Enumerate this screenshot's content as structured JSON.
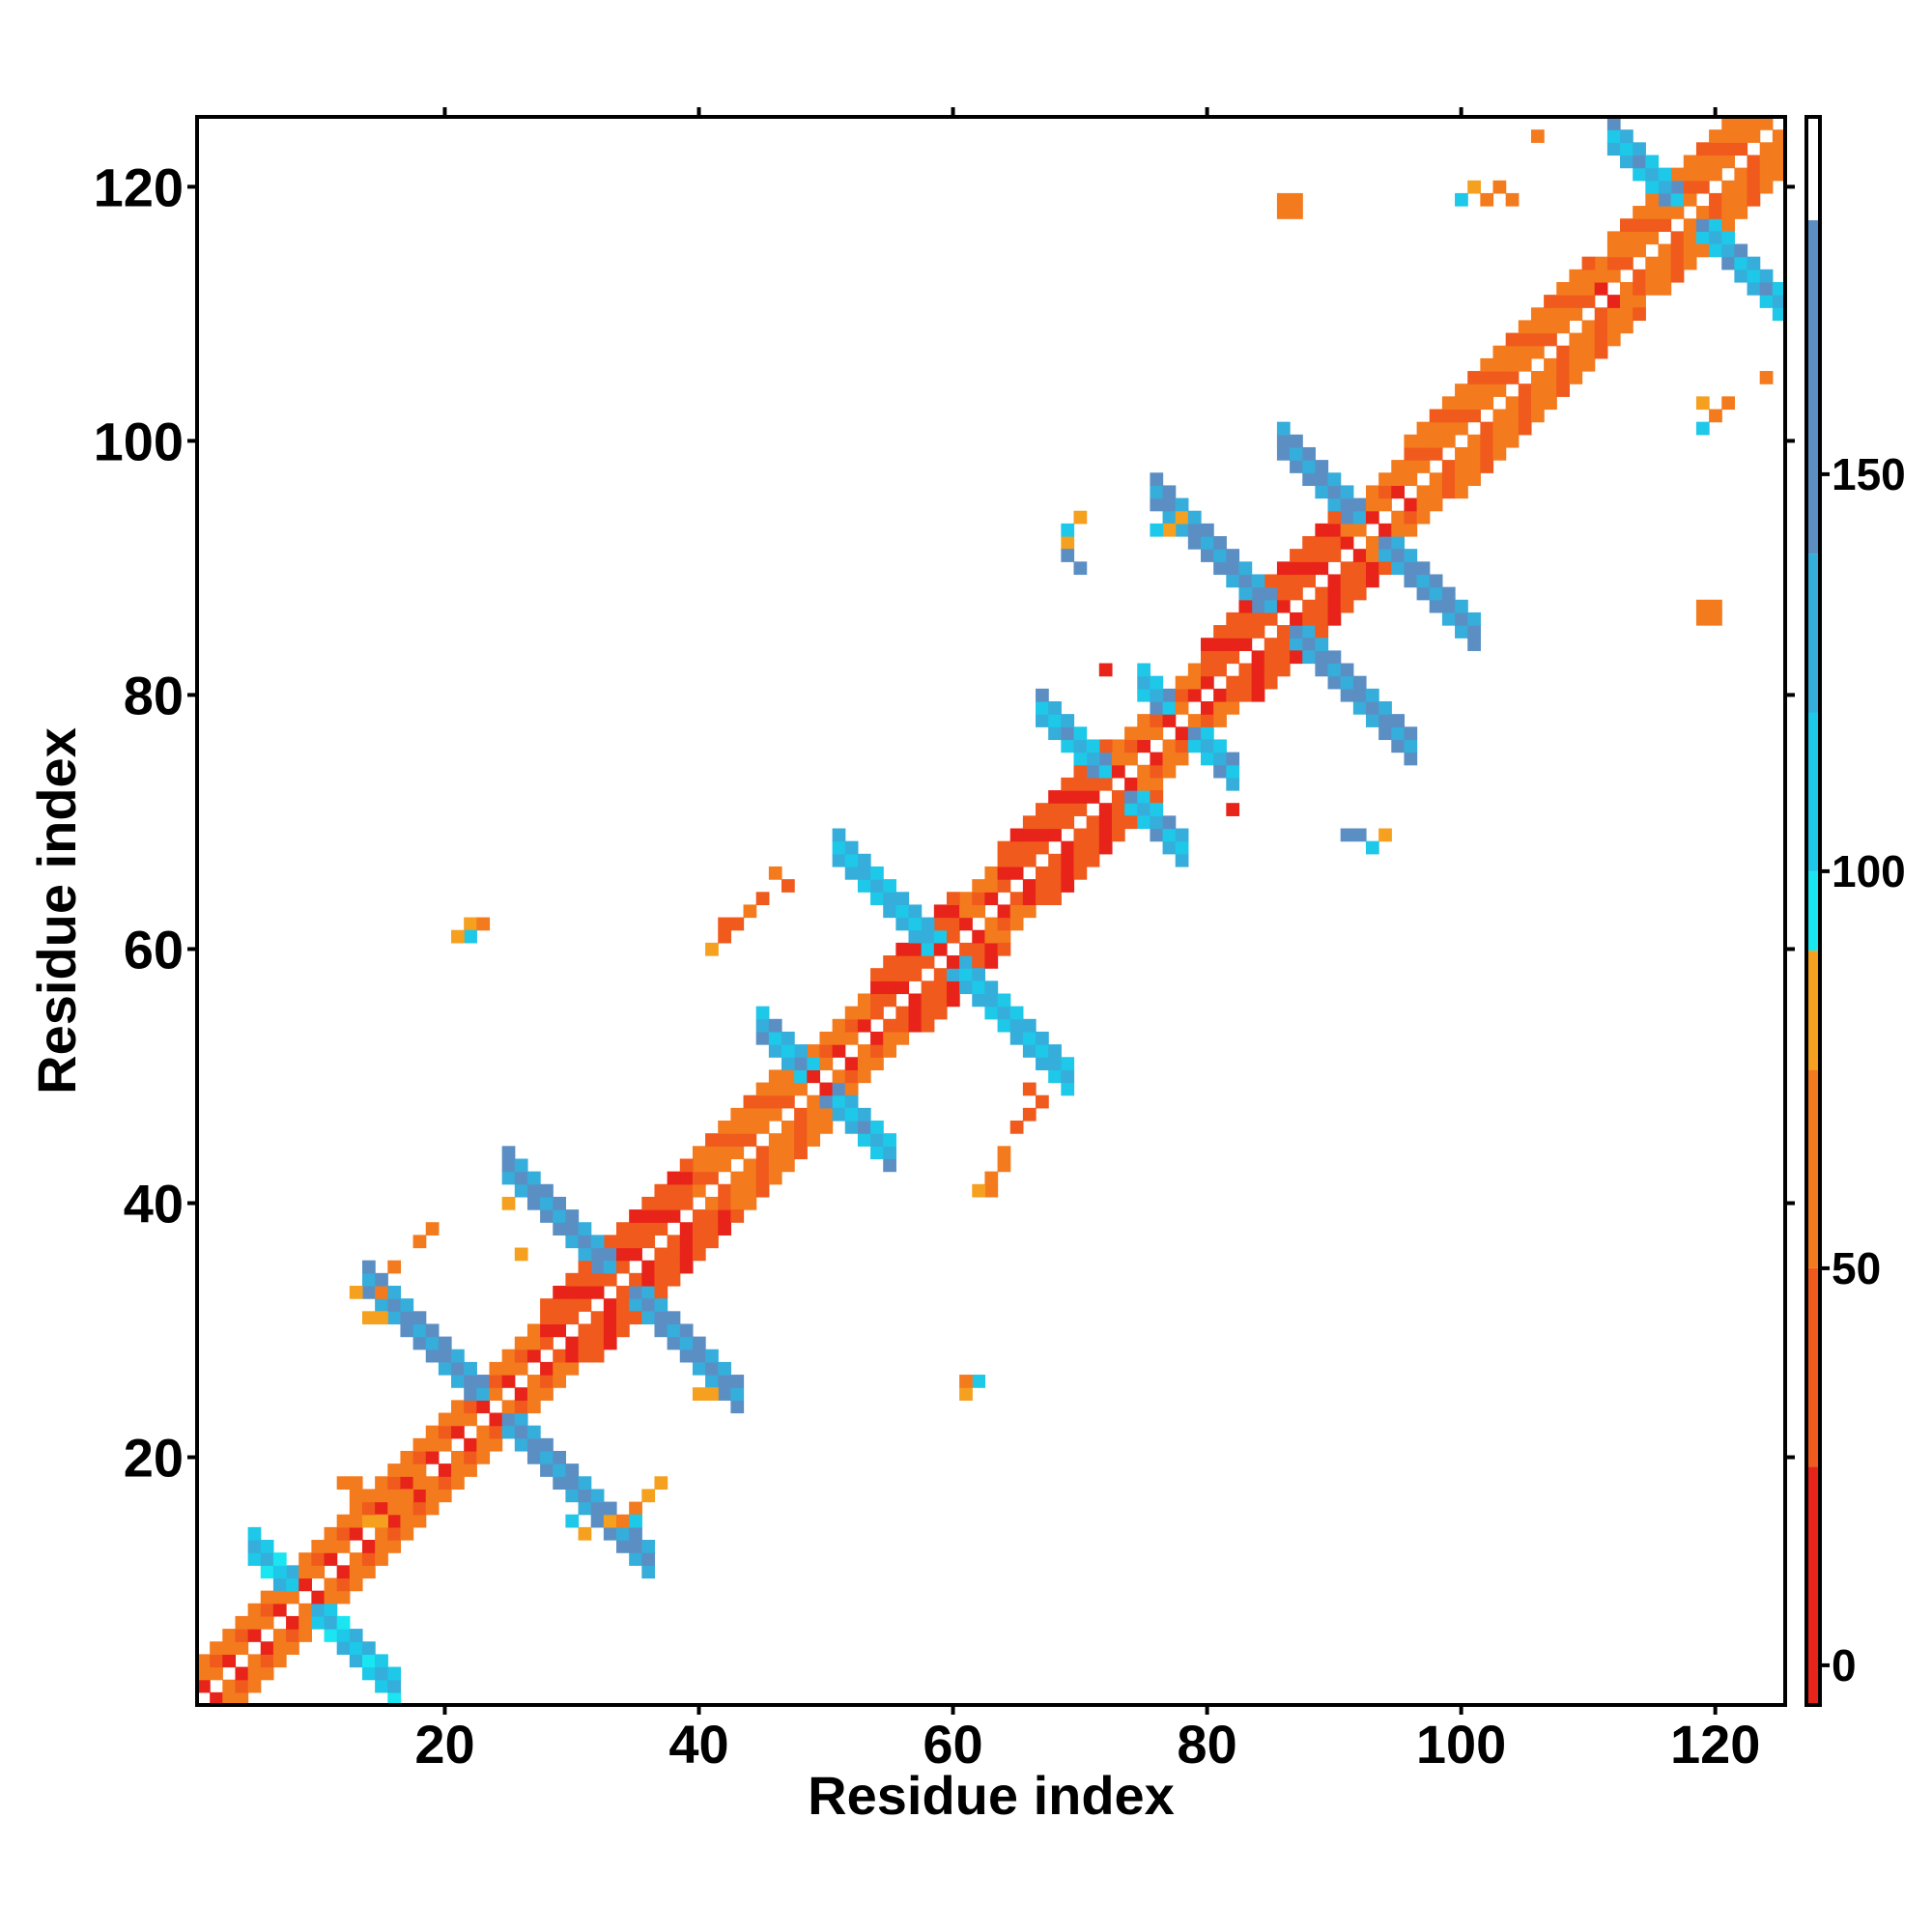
{
  "chart_data": {
    "type": "heatmap",
    "title": "",
    "xlabel": "Residue index",
    "ylabel": "Residue index",
    "xlim": [
      1,
      125
    ],
    "ylim": [
      1,
      125
    ],
    "x_ticks": [
      20,
      40,
      60,
      80,
      100,
      120
    ],
    "y_ticks": [
      20,
      40,
      60,
      80,
      100,
      120
    ],
    "colorbar": {
      "range": [
        -5,
        195
      ],
      "ticks": [
        0,
        50,
        100,
        150
      ],
      "bands": [
        {
          "from": -5,
          "to": 25,
          "color": "#e8231a"
        },
        {
          "from": 25,
          "to": 50,
          "color": "#f05a1c"
        },
        {
          "from": 50,
          "to": 75,
          "color": "#f47a1e"
        },
        {
          "from": 75,
          "to": 90,
          "color": "#f5a01f"
        },
        {
          "from": 90,
          "to": 100,
          "color": "#19e6f0"
        },
        {
          "from": 100,
          "to": 120,
          "color": "#1ec8e8"
        },
        {
          "from": 120,
          "to": 140,
          "color": "#35aedb"
        },
        {
          "from": 140,
          "to": 182,
          "color": "#5b8fc4"
        },
        {
          "from": 182,
          "to": 195,
          "color": "#ffffff"
        }
      ]
    },
    "diagonal": {
      "from": 1,
      "to": 125,
      "near_values": [
        5,
        55
      ],
      "second_values": [
        40,
        70
      ]
    },
    "diagonal_blocks": [
      {
        "from": 28,
        "to": 40,
        "value": 10
      },
      {
        "from": 40,
        "to": 48,
        "value": 40
      },
      {
        "from": 54,
        "to": 60,
        "value": 10
      },
      {
        "from": 64,
        "to": 72,
        "value": 15
      },
      {
        "from": 80,
        "to": 90,
        "value": 5
      },
      {
        "from": 96,
        "to": 110,
        "value": 40
      },
      {
        "from": 112,
        "to": 125,
        "value": 30
      }
    ],
    "antidiagonal_arms": [
      {
        "center": [
          9,
          9
        ],
        "sum": 18,
        "x_range": [
          5,
          16
        ],
        "half_width": 1,
        "values": [
          95,
          130
        ]
      },
      {
        "center": [
          24,
          24
        ],
        "sum": 48,
        "x_range": [
          14,
          36
        ],
        "half_width": 1,
        "values": [
          130,
          150
        ]
      },
      {
        "center": [
          34,
          34
        ],
        "sum": 68,
        "x_range": [
          25,
          43
        ],
        "half_width": 1,
        "values": [
          130,
          150
        ]
      },
      {
        "center": [
          50,
          50
        ],
        "sum": 99,
        "x_range": [
          45,
          55
        ],
        "half_width": 1,
        "values": [
          110,
          140
        ]
      },
      {
        "center": [
          60,
          60
        ],
        "sum": 119,
        "x_range": [
          51,
          69
        ],
        "half_width": 1,
        "values": [
          110,
          130
        ]
      },
      {
        "center": [
          73,
          73
        ],
        "sum": 146,
        "x_range": [
          67,
          78
        ],
        "half_width": 1,
        "values": [
          110,
          145
        ]
      },
      {
        "center": [
          78,
          78
        ],
        "sum": 156,
        "x_range": [
          75,
          82
        ],
        "half_width": 1,
        "values": [
          100,
          140
        ]
      },
      {
        "center": [
          86,
          86
        ],
        "sum": 172,
        "x_range": [
          76,
          96
        ],
        "half_width": 1,
        "values": [
          130,
          155
        ]
      },
      {
        "center": [
          93,
          93
        ],
        "sum": 186,
        "x_range": [
          86,
          101
        ],
        "half_width": 1,
        "values": [
          130,
          150
        ]
      },
      {
        "center": [
          118,
          118
        ],
        "sum": 236,
        "x_range": [
          112,
          125
        ],
        "half_width": 1,
        "values": [
          110,
          140
        ]
      }
    ],
    "scattered_cells": [
      [
        13,
        33,
        80
      ],
      [
        15,
        33,
        60
      ],
      [
        14,
        31,
        80
      ],
      [
        15,
        31,
        80
      ],
      [
        16,
        35,
        60
      ],
      [
        18,
        37,
        60
      ],
      [
        19,
        38,
        60
      ],
      [
        25,
        40,
        80
      ],
      [
        26,
        36,
        80
      ],
      [
        14,
        15,
        80
      ],
      [
        15,
        15,
        80
      ],
      [
        16,
        16,
        60
      ],
      [
        17,
        17,
        60
      ],
      [
        18,
        18,
        60
      ],
      [
        12,
        18,
        60
      ],
      [
        13,
        18,
        60
      ],
      [
        13,
        17,
        60
      ],
      [
        22,
        62,
        80
      ],
      [
        23,
        62,
        60
      ],
      [
        22,
        61,
        100
      ],
      [
        21,
        61,
        80
      ],
      [
        42,
        62,
        40
      ],
      [
        43,
        62,
        40
      ],
      [
        44,
        63,
        60
      ],
      [
        45,
        64,
        40
      ],
      [
        46,
        66,
        60
      ],
      [
        47,
        65,
        40
      ],
      [
        41,
        60,
        80
      ],
      [
        42,
        61,
        40
      ],
      [
        63,
        41,
        60
      ],
      [
        62,
        41,
        80
      ],
      [
        63,
        42,
        60
      ],
      [
        64,
        43,
        60
      ],
      [
        64,
        44,
        60
      ],
      [
        65,
        46,
        40
      ],
      [
        66,
        47,
        40
      ],
      [
        67,
        48,
        40
      ],
      [
        66,
        49,
        40
      ],
      [
        61,
        25,
        80
      ],
      [
        62,
        26,
        100
      ],
      [
        61,
        26,
        60
      ],
      [
        41,
        25,
        80
      ],
      [
        40,
        25,
        80
      ],
      [
        69,
        92,
        80
      ],
      [
        69,
        93,
        100
      ],
      [
        69,
        91,
        140
      ],
      [
        70,
        90,
        140
      ],
      [
        70,
        94,
        80
      ],
      [
        77,
        93,
        80
      ],
      [
        78,
        94,
        80
      ],
      [
        76,
        93,
        100
      ],
      [
        72,
        82,
        20
      ],
      [
        82,
        71,
        20
      ],
      [
        91,
        69,
        140
      ],
      [
        92,
        69,
        140
      ],
      [
        93,
        68,
        100
      ],
      [
        94,
        69,
        80
      ],
      [
        86,
        119,
        60
      ],
      [
        87,
        119,
        60
      ],
      [
        86,
        118,
        60
      ],
      [
        87,
        118,
        60
      ],
      [
        101,
        120,
        80
      ],
      [
        102,
        119,
        60
      ],
      [
        103,
        120,
        60
      ],
      [
        104,
        119,
        60
      ],
      [
        100,
        119,
        100
      ],
      [
        106,
        124,
        60
      ],
      [
        119,
        103,
        80
      ],
      [
        120,
        102,
        60
      ],
      [
        119,
        101,
        100
      ],
      [
        121,
        103,
        60
      ],
      [
        119,
        86,
        60
      ],
      [
        120,
        86,
        60
      ],
      [
        119,
        87,
        60
      ],
      [
        120,
        87,
        60
      ],
      [
        124,
        105,
        60
      ],
      [
        37,
        18,
        80
      ],
      [
        36,
        17,
        80
      ],
      [
        35,
        16,
        60
      ],
      [
        34,
        15,
        60
      ],
      [
        33,
        15,
        80
      ],
      [
        31,
        14,
        80
      ],
      [
        30,
        15,
        100
      ],
      [
        35,
        15,
        100
      ]
    ]
  }
}
